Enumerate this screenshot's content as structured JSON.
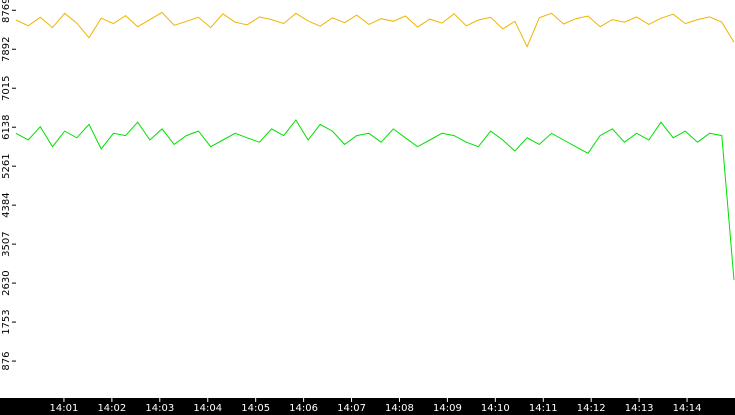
{
  "chart_data": {
    "type": "line",
    "xlim": [
      0,
      15
    ],
    "xticks": [
      {
        "value": 1,
        "label": "14:01"
      },
      {
        "value": 2,
        "label": "14:02"
      },
      {
        "value": 3,
        "label": "14:03"
      },
      {
        "value": 4,
        "label": "14:04"
      },
      {
        "value": 5,
        "label": "14:05"
      },
      {
        "value": 6,
        "label": "14:06"
      },
      {
        "value": 7,
        "label": "14:07"
      },
      {
        "value": 8,
        "label": "14:08"
      },
      {
        "value": 9,
        "label": "14:09"
      },
      {
        "value": 10,
        "label": "14:10"
      },
      {
        "value": 11,
        "label": "14:11"
      },
      {
        "value": 12,
        "label": "14:12"
      },
      {
        "value": 13,
        "label": "14:13"
      },
      {
        "value": 14,
        "label": "14:14"
      }
    ],
    "ylim": [
      0,
      9000
    ],
    "yticks": [
      876,
      1753,
      2630,
      3507,
      4384,
      5261,
      6138,
      7015,
      7892,
      8769
    ],
    "series": [
      {
        "color": "#f0b400",
        "values": [
          8550,
          8420,
          8610,
          8380,
          8700,
          8480,
          8150,
          8590,
          8470,
          8650,
          8400,
          8560,
          8720,
          8430,
          8520,
          8610,
          8380,
          8690,
          8500,
          8440,
          8620,
          8560,
          8470,
          8700,
          8530,
          8410,
          8600,
          8490,
          8660,
          8450,
          8580,
          8520,
          8640,
          8390,
          8570,
          8480,
          8690,
          8420,
          8550,
          8610,
          8350,
          8520,
          7950,
          8600,
          8700,
          8460,
          8580,
          8640,
          8400,
          8560,
          8500,
          8620,
          8450,
          8590,
          8680,
          8470,
          8560,
          8620,
          8500,
          8050
        ]
      },
      {
        "color": "#00e000",
        "values": [
          6000,
          5850,
          6150,
          5700,
          6050,
          5900,
          6200,
          5650,
          6000,
          5950,
          6250,
          5850,
          6100,
          5750,
          5950,
          6050,
          5700,
          5850,
          6000,
          5900,
          5800,
          6100,
          5950,
          6300,
          5850,
          6200,
          6050,
          5750,
          5950,
          6000,
          5800,
          6100,
          5900,
          5700,
          5850,
          6000,
          5950,
          5800,
          5700,
          6050,
          5850,
          5600,
          5900,
          5750,
          6000,
          5850,
          5700,
          5550,
          5950,
          6100,
          5800,
          6000,
          5850,
          6250,
          5900,
          6050,
          5800,
          6000,
          5950,
          2700
        ]
      }
    ]
  }
}
